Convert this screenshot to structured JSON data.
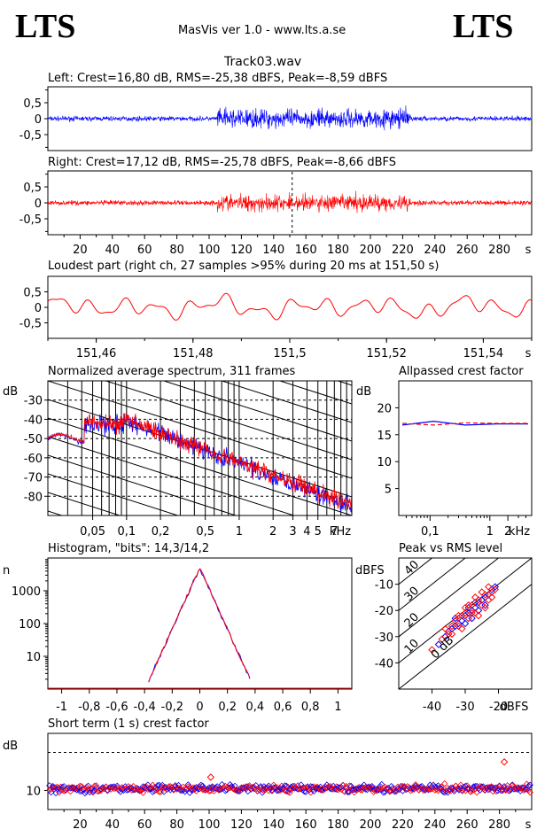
{
  "header": {
    "logo_left": "LTS",
    "logo_right": "LTS",
    "app_title": "MasVis ver 1.0 - www.lts.a.se",
    "file_name": "Track03.wav"
  },
  "colors": {
    "left": "#0000ff",
    "right": "#ff0000",
    "axis": "#000000"
  },
  "chart_data": [
    {
      "id": "left",
      "type": "line",
      "title": "Left: Crest=16,80 dB, RMS=-25,38 dBFS, Peak=-8,59 dBFS",
      "series": [
        {
          "name": "Left",
          "color": "#0000ff"
        }
      ],
      "ylim": [
        -1,
        1
      ],
      "y_ticks": [
        "0,5",
        "0",
        "-0,5"
      ],
      "x_range": [
        0,
        300
      ],
      "envelope": {
        "quiet": [
          0,
          105
        ],
        "loud": [
          105,
          225
        ],
        "quiet_end": [
          225,
          300
        ]
      },
      "quiet_amplitude": 0.07,
      "loud_amplitude": 0.25,
      "grid": false
    },
    {
      "id": "right",
      "type": "line",
      "title": "Right: Crest=17,12 dB, RMS=-25,78 dBFS, Peak=-8,66 dBFS",
      "series": [
        {
          "name": "Right",
          "color": "#ff0000"
        }
      ],
      "ylim": [
        -1,
        1
      ],
      "y_ticks": [
        "0,5",
        "0",
        "-0,5"
      ],
      "x_range": [
        0,
        300
      ],
      "x_ticks": [
        "20",
        "40",
        "60",
        "80",
        "100",
        "120",
        "140",
        "160",
        "180",
        "200",
        "220",
        "240",
        "260",
        "280"
      ],
      "x_tick_values": [
        20,
        40,
        60,
        80,
        100,
        120,
        140,
        160,
        180,
        200,
        220,
        240,
        260,
        280
      ],
      "x_unit": "s",
      "marker_at": 151.5,
      "quiet_amplitude": 0.07,
      "loud_amplitude": 0.23,
      "grid": false
    },
    {
      "id": "loudest",
      "type": "line",
      "title": "Loudest part (right ch, 27 samples >95% during 20 ms at 151,50 s)",
      "series": [
        {
          "name": "Right",
          "color": "#ff0000"
        }
      ],
      "ylim": [
        -1,
        1
      ],
      "y_ticks": [
        "0,5",
        "0",
        "-0,5"
      ],
      "x_range": [
        151.45,
        151.55
      ],
      "x_ticks": [
        "151,46",
        "151,48",
        "151,5",
        "151,52",
        "151,54"
      ],
      "x_tick_values": [
        151.46,
        151.48,
        151.5,
        151.52,
        151.54
      ],
      "x_unit": "s",
      "grid": false
    },
    {
      "id": "spectrum",
      "type": "line",
      "title": "Normalized average spectrum, 311 frames",
      "y_unit": "dB",
      "y_ticks": [
        "-30",
        "-40",
        "-50",
        "-60",
        "-70",
        "-80"
      ],
      "ylim": [
        -90,
        -20
      ],
      "x_scale": "log",
      "x_ticks": [
        "0,05",
        "0,1",
        "0,2",
        "0,5",
        "1",
        "2",
        "3",
        "4",
        "5",
        "7"
      ],
      "x_tick_values": [
        0.05,
        0.1,
        0.2,
        0.5,
        1,
        2,
        3,
        4,
        5,
        7
      ],
      "x_unit": "kHz",
      "xlim": [
        0.02,
        10
      ],
      "series": [
        {
          "name": "Left",
          "color": "#0000ff"
        },
        {
          "name": "Right",
          "color": "#ff0000"
        }
      ],
      "grid": true
    },
    {
      "id": "allpass",
      "type": "line",
      "title": "Allpassed crest factor",
      "y_unit": "dB",
      "y_ticks": [
        "20",
        "15",
        "10",
        "5"
      ],
      "y_tick_values": [
        20,
        15,
        10,
        5
      ],
      "ylim": [
        0,
        25
      ],
      "x_scale": "log",
      "x_ticks": [
        "0,1",
        "1",
        "2",
        "kHz"
      ],
      "x_tick_values": [
        0.1,
        1,
        2
      ],
      "xlim": [
        0.03,
        5
      ],
      "left_values": [
        16.8,
        17.5,
        16.8,
        17.0,
        17.0
      ],
      "right_values": [
        17.1,
        16.8,
        17.2,
        17.1,
        17.1
      ],
      "grid": false
    },
    {
      "id": "histogram",
      "type": "line",
      "title": "Histogram, \"bits\": 14,3/14,2",
      "y_unit": "n",
      "y_scale": "log",
      "y_ticks": [
        "1000",
        "100",
        "10"
      ],
      "y_tick_values": [
        1000,
        100,
        10
      ],
      "ylim": [
        1,
        10000
      ],
      "x_ticks": [
        "-1",
        "-0,8",
        "-0,6",
        "-0,4",
        "-0,2",
        "0",
        "0,2",
        "0,4",
        "0,6",
        "0,8",
        "1"
      ],
      "x_tick_values": [
        -1,
        -0.8,
        -0.6,
        -0.4,
        -0.2,
        0,
        0.2,
        0.4,
        0.6,
        0.8,
        1
      ],
      "xlim": [
        -1.1,
        1.1
      ],
      "peak_count": 5000,
      "support": [
        -0.37,
        0.37
      ],
      "series": [
        {
          "name": "Left",
          "color": "#0000ff"
        },
        {
          "name": "Right",
          "color": "#ff0000"
        }
      ],
      "grid": false
    },
    {
      "id": "peak_vs_rms",
      "type": "scatter",
      "title": "Peak vs RMS level",
      "y_unit": "dBFS",
      "x_unit": "dBFS",
      "y_ticks": [
        "-10",
        "-20",
        "-30",
        "-40"
      ],
      "y_tick_values": [
        -10,
        -20,
        -30,
        -40
      ],
      "x_ticks": [
        "-40",
        "-30",
        "-20"
      ],
      "x_tick_values": [
        -40,
        -30,
        -20
      ],
      "xlim": [
        -50,
        -10
      ],
      "ylim": [
        -50,
        0
      ],
      "diagonal_labels": [
        "40",
        "30",
        "20",
        "10",
        "0 dB"
      ],
      "diagonal_values": [
        40,
        30,
        20,
        10,
        0
      ],
      "left_points": [
        [
          -38,
          -33
        ],
        [
          -36,
          -30
        ],
        [
          -35,
          -28
        ],
        [
          -34,
          -27
        ],
        [
          -33,
          -26
        ],
        [
          -32,
          -25
        ],
        [
          -31,
          -24
        ],
        [
          -30,
          -22
        ],
        [
          -29,
          -21
        ],
        [
          -28,
          -20
        ],
        [
          -27,
          -19
        ],
        [
          -26,
          -17
        ],
        [
          -25,
          -16
        ],
        [
          -24,
          -15
        ],
        [
          -23,
          -14
        ],
        [
          -22,
          -12
        ],
        [
          -21,
          -11
        ],
        [
          -33,
          -23
        ],
        [
          -30,
          -25
        ],
        [
          -28,
          -23
        ],
        [
          -26,
          -20
        ],
        [
          -24,
          -18
        ],
        [
          -29,
          -19
        ],
        [
          -27,
          -17
        ]
      ],
      "right_points": [
        [
          -40,
          -35
        ],
        [
          -37,
          -31
        ],
        [
          -35,
          -29
        ],
        [
          -34,
          -26
        ],
        [
          -33,
          -24
        ],
        [
          -32,
          -26
        ],
        [
          -31,
          -22
        ],
        [
          -30,
          -21
        ],
        [
          -29,
          -23
        ],
        [
          -28,
          -18
        ],
        [
          -27,
          -21
        ],
        [
          -26,
          -16
        ],
        [
          -25,
          -18
        ],
        [
          -24,
          -14
        ],
        [
          -23,
          -16
        ],
        [
          -22,
          -13
        ],
        [
          -21,
          -12
        ],
        [
          -36,
          -27
        ],
        [
          -34,
          -29
        ],
        [
          -31,
          -27
        ],
        [
          -29,
          -18
        ],
        [
          -27,
          -15
        ],
        [
          -25,
          -13
        ],
        [
          -23,
          -11
        ],
        [
          -22,
          -15
        ],
        [
          -30,
          -19
        ],
        [
          -28,
          -21
        ],
        [
          -26,
          -22
        ],
        [
          -32,
          -22
        ],
        [
          -24,
          -19
        ]
      ],
      "grid": false
    },
    {
      "id": "short_term_crest",
      "type": "scatter",
      "title": "Short term (1 s) crest factor",
      "y_unit": "dB",
      "y_ticks": [
        "10"
      ],
      "y_tick_values": [
        10
      ],
      "ylim": [
        5,
        25
      ],
      "reference_line": 20,
      "x_range": [
        0,
        300
      ],
      "x_ticks": [
        "20",
        "40",
        "60",
        "80",
        "100",
        "120",
        "140",
        "160",
        "180",
        "200",
        "220",
        "240",
        "260",
        "280"
      ],
      "x_tick_values": [
        20,
        40,
        60,
        80,
        100,
        120,
        140,
        160,
        180,
        200,
        220,
        240,
        260,
        280
      ],
      "x_unit": "s",
      "mean_value": 10.5,
      "outliers": [
        [
          101,
          13.5
        ],
        [
          283,
          17.5
        ]
      ],
      "series": [
        {
          "name": "Left",
          "color": "#0000ff"
        },
        {
          "name": "Right",
          "color": "#ff0000"
        }
      ],
      "grid": false
    }
  ]
}
